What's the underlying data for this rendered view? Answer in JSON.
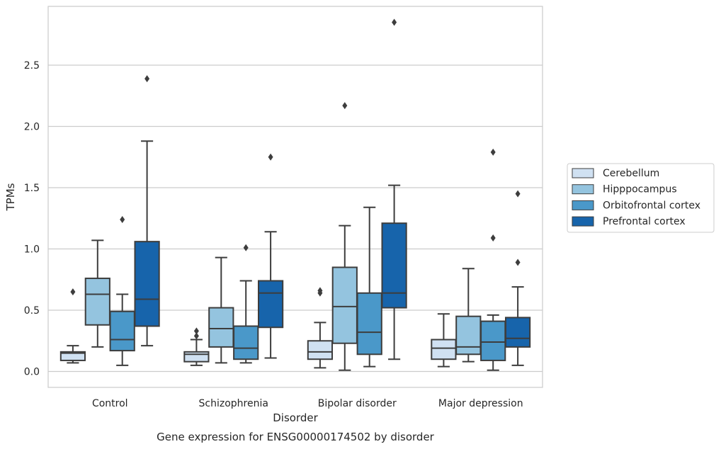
{
  "chart_data": {
    "type": "box",
    "title": "",
    "caption": "Gene expression for ENSG00000174502 by disorder",
    "xlabel": "Disorder",
    "ylabel": "TPMs",
    "ylim": [
      -0.13,
      2.98
    ],
    "yticks": [
      "0.0",
      "0.5",
      "1.0",
      "1.5",
      "2.0",
      "2.5"
    ],
    "categories": [
      "Control",
      "Schizophrenia",
      "Bipolar disorder",
      "Major depression"
    ],
    "grid": "horizontal",
    "legend_position": "right",
    "series": [
      {
        "name": "Cerebellum",
        "color": "#d0e1f2",
        "boxes": [
          {
            "whislo": 0.07,
            "q1": 0.09,
            "med": 0.15,
            "q3": 0.16,
            "whishi": 0.21,
            "fliers": [
              0.65
            ]
          },
          {
            "whislo": 0.05,
            "q1": 0.08,
            "med": 0.14,
            "q3": 0.16,
            "whishi": 0.26,
            "fliers": [
              0.29,
              0.33
            ]
          },
          {
            "whislo": 0.03,
            "q1": 0.1,
            "med": 0.16,
            "q3": 0.25,
            "whishi": 0.4,
            "fliers": [
              0.64,
              0.66
            ]
          },
          {
            "whislo": 0.04,
            "q1": 0.1,
            "med": 0.19,
            "q3": 0.26,
            "whishi": 0.47,
            "fliers": []
          }
        ]
      },
      {
        "name": "Hipppocampus",
        "color": "#94c4df",
        "boxes": [
          {
            "whislo": 0.2,
            "q1": 0.38,
            "med": 0.63,
            "q3": 0.76,
            "whishi": 1.07,
            "fliers": []
          },
          {
            "whislo": 0.07,
            "q1": 0.2,
            "med": 0.35,
            "q3": 0.52,
            "whishi": 0.93,
            "fliers": []
          },
          {
            "whislo": 0.01,
            "q1": 0.23,
            "med": 0.53,
            "q3": 0.85,
            "whishi": 1.19,
            "fliers": [
              2.17
            ]
          },
          {
            "whislo": 0.08,
            "q1": 0.14,
            "med": 0.2,
            "q3": 0.45,
            "whishi": 0.84,
            "fliers": []
          }
        ]
      },
      {
        "name": "Orbitofrontal cortex",
        "color": "#4a98c9",
        "boxes": [
          {
            "whislo": 0.05,
            "q1": 0.17,
            "med": 0.26,
            "q3": 0.49,
            "whishi": 0.63,
            "fliers": [
              1.24
            ]
          },
          {
            "whislo": 0.07,
            "q1": 0.1,
            "med": 0.19,
            "q3": 0.37,
            "whishi": 0.74,
            "fliers": [
              1.01
            ]
          },
          {
            "whislo": 0.04,
            "q1": 0.14,
            "med": 0.32,
            "q3": 0.64,
            "whishi": 1.34,
            "fliers": []
          },
          {
            "whislo": 0.01,
            "q1": 0.09,
            "med": 0.24,
            "q3": 0.41,
            "whishi": 0.46,
            "fliers": [
              1.09,
              1.79
            ]
          }
        ]
      },
      {
        "name": "Prefrontal cortex",
        "color": "#1764ab",
        "boxes": [
          {
            "whislo": 0.21,
            "q1": 0.37,
            "med": 0.59,
            "q3": 1.06,
            "whishi": 1.88,
            "fliers": [
              2.39
            ]
          },
          {
            "whislo": 0.11,
            "q1": 0.36,
            "med": 0.64,
            "q3": 0.74,
            "whishi": 1.14,
            "fliers": [
              1.75
            ]
          },
          {
            "whislo": 0.1,
            "q1": 0.52,
            "med": 0.64,
            "q3": 1.21,
            "whishi": 1.52,
            "fliers": [
              2.85
            ]
          },
          {
            "whislo": 0.05,
            "q1": 0.2,
            "med": 0.27,
            "q3": 0.44,
            "whishi": 0.69,
            "fliers": [
              0.89,
              1.45
            ]
          }
        ]
      }
    ]
  }
}
